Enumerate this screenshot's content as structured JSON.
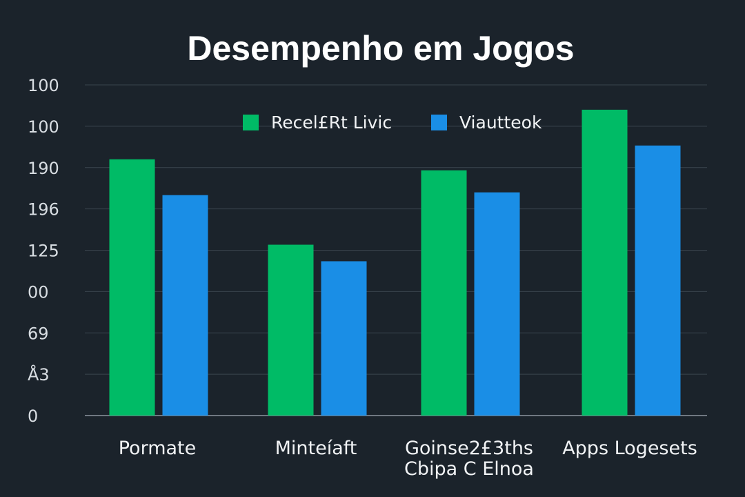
{
  "chart_data": {
    "type": "bar",
    "title": "Desempenho em Jogos",
    "y_tick_labels": [
      "0",
      "Å3",
      "69",
      "00",
      "125",
      "196",
      "190",
      "100",
      "100"
    ],
    "categories": [
      [
        "Pormate"
      ],
      [
        "Minteíaft"
      ],
      [
        "Goinse2£3ths",
        "Cbipa C Elnoa"
      ],
      [
        "Apps Logesets"
      ]
    ],
    "series": [
      {
        "name": "Recel£Rt Livic",
        "color": "#00bb66",
        "values": [
          93,
          62,
          89,
          111
        ]
      },
      {
        "name": "Viautteok",
        "color": "#1a8ee6",
        "values": [
          80,
          56,
          81,
          98
        ]
      }
    ],
    "ylim": [
      0,
      120
    ],
    "grid": true,
    "legend": "top-center"
  }
}
